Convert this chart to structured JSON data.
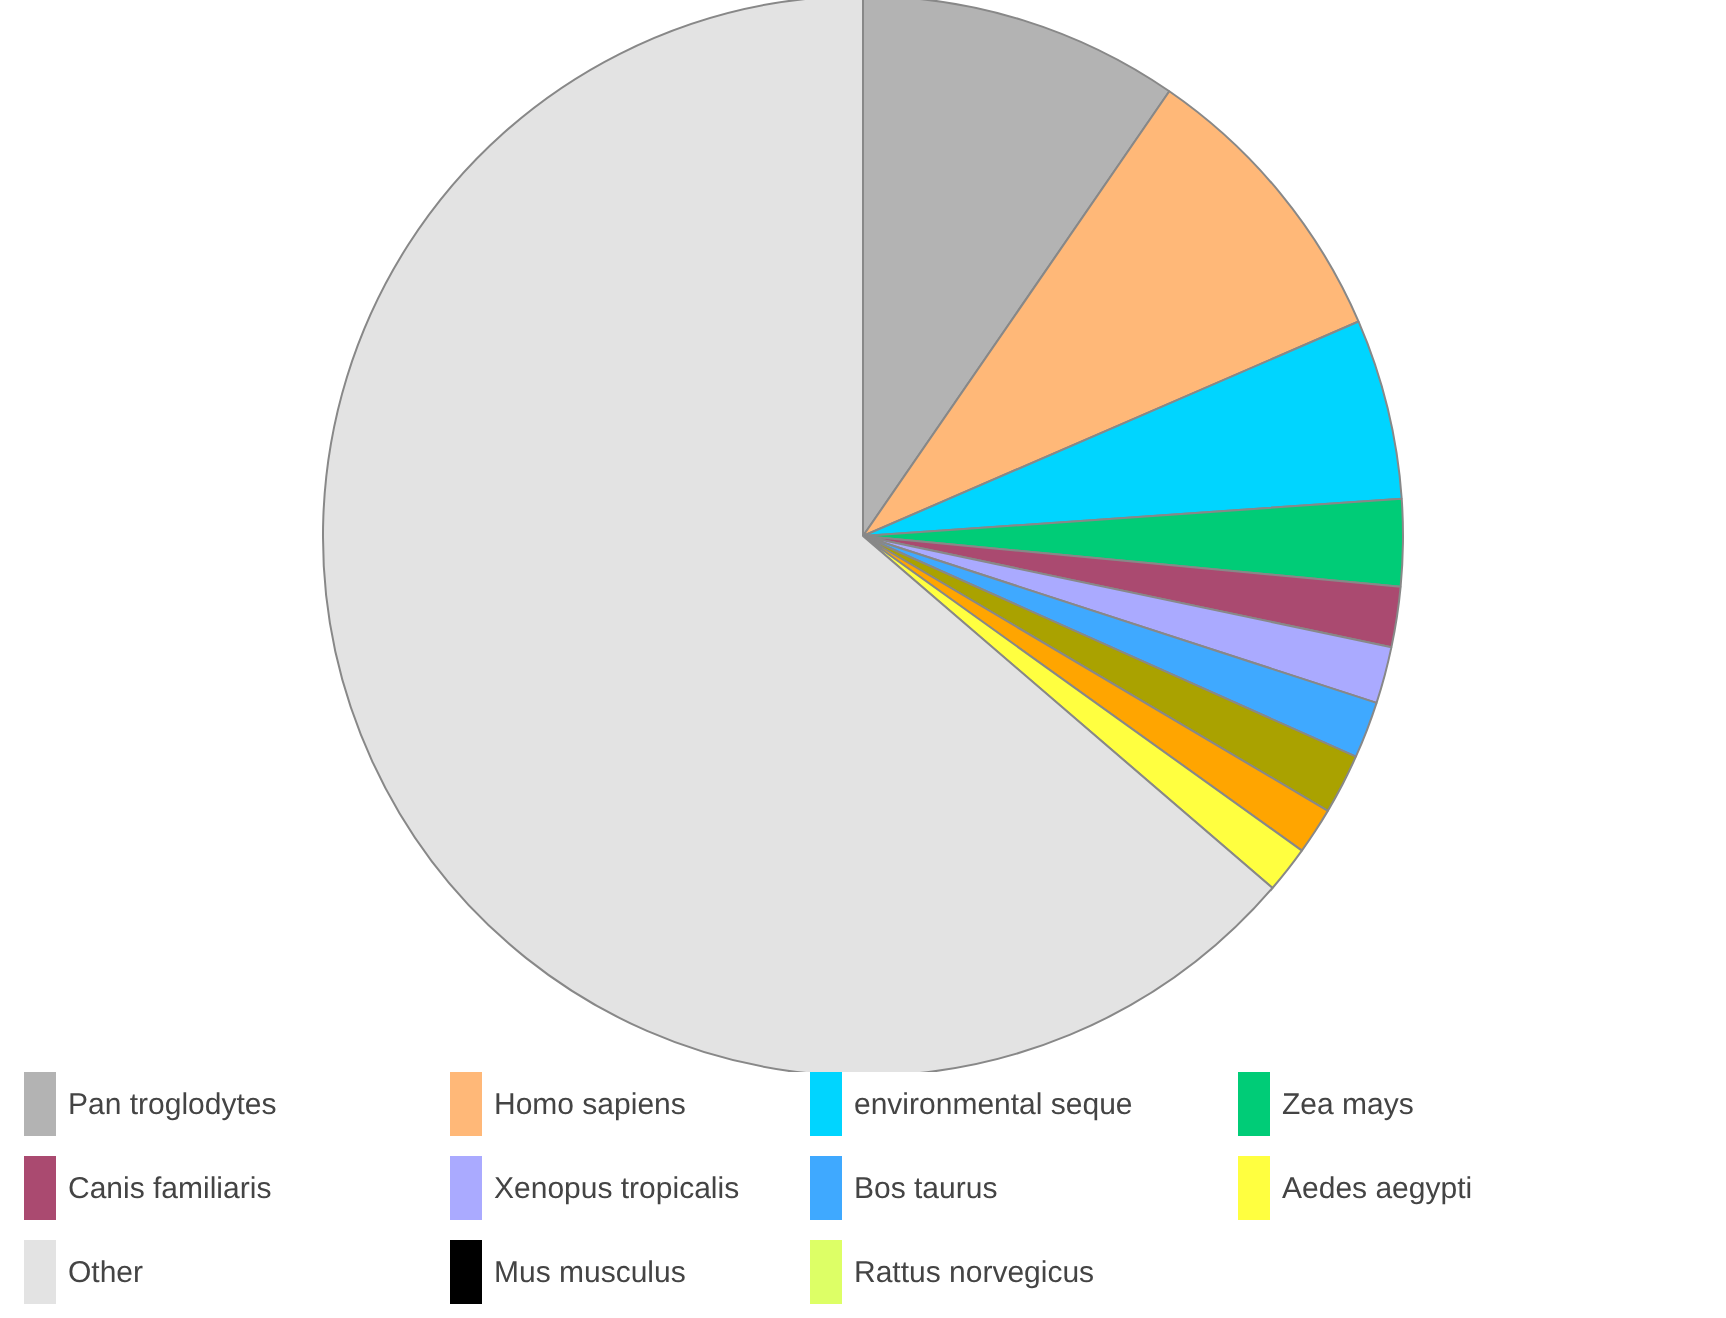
{
  "chart_data": {
    "type": "pie",
    "categories": [
      "Pan troglodytes",
      "Homo sapiens",
      "environmental seque",
      "Zea mays",
      "Canis familiaris",
      "Xenopus tropicalis",
      "Bos taurus",
      null,
      null,
      "Aedes aegypti",
      "Other",
      "Mus musculus",
      "Rattus norvegicus"
    ],
    "values": [
      9.6,
      8.9,
      5.4,
      2.6,
      1.8,
      1.7,
      1.7,
      1.8,
      1.4,
      1.4,
      63.7,
      0,
      0
    ],
    "colors": [
      "#b3b3b3",
      "#ffb878",
      "#00d5ff",
      "#00cc77",
      "#aa4a70",
      "#aaaaff",
      "#3fa9ff",
      "#aaa200",
      "#ffa500",
      "#ffff40",
      "#e3e3e3",
      "#000000",
      "#ddff66"
    ],
    "legend": "bottom"
  }
}
